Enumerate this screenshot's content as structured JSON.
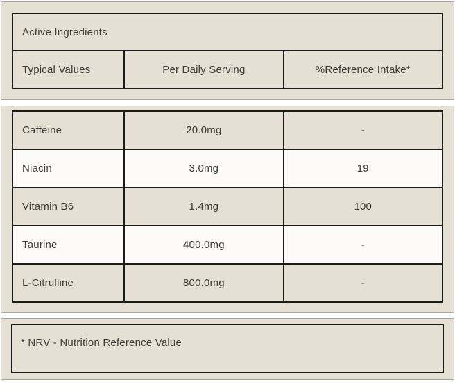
{
  "header": {
    "title": "Active Ingredients",
    "columns": [
      "Typical Values",
      "Per Daily Serving",
      "%Reference Intake*"
    ]
  },
  "table": {
    "rows": [
      {
        "name": "Caffeine",
        "per_serving": "20.0mg",
        "reference_intake": "-"
      },
      {
        "name": "Niacin",
        "per_serving": "3.0mg",
        "reference_intake": "19"
      },
      {
        "name": "Vitamin B6",
        "per_serving": "1.4mg",
        "reference_intake": "100"
      },
      {
        "name": "Taurine",
        "per_serving": "400.0mg",
        "reference_intake": "-"
      },
      {
        "name": "L-Citrulline",
        "per_serving": "800.0mg",
        "reference_intake": "-"
      }
    ]
  },
  "footnote": "* NRV - Nutrition Reference Value",
  "colors": {
    "panel_bg": "#e5dfd4",
    "row_alt_bg": "#fcfbf9",
    "table_border": "#1c1c1c",
    "panel_border": "#aaa49b",
    "text": "#3e3a35"
  }
}
